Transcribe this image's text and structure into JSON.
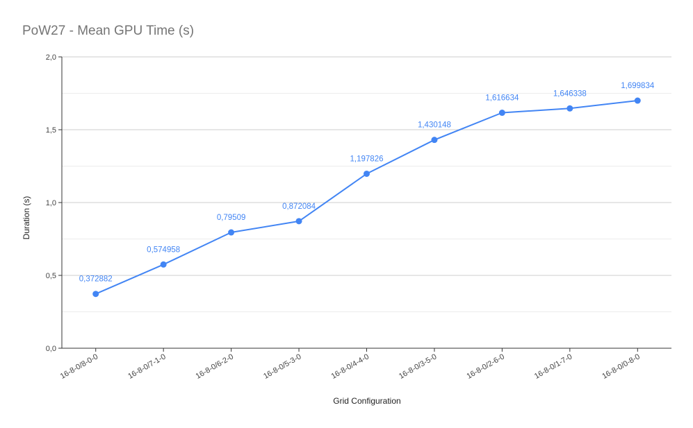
{
  "chart_data": {
    "type": "line",
    "title": "PoW27 - Mean GPU Time (s)",
    "xlabel": "Grid Configuration",
    "ylabel": "Duration (s)",
    "categories": [
      "16-8-0/8-0-0",
      "16-8-0/7-1-0",
      "16-8-0/6-2-0",
      "16-8-0/5-3-0",
      "16-8-0/4-4-0",
      "16-8-0/3-5-0",
      "16-8-0/2-6-0",
      "16-8-0/1-7-0",
      "16-8-0/0-8-0"
    ],
    "series": [
      {
        "values": [
          0.372882,
          0.574958,
          0.79509,
          0.872084,
          1.197826,
          1.430148,
          1.616634,
          1.646338,
          1.699834
        ],
        "labels": [
          "0,372882",
          "0,574958",
          "0,79509",
          "0,872084",
          "1,197826",
          "1,430148",
          "1,616634",
          "1,646338",
          "1,699834"
        ],
        "color": "#4285f4"
      }
    ],
    "ylim": [
      0,
      2.0
    ],
    "yticks": [
      0,
      0.5,
      1.0,
      1.5,
      2.0
    ],
    "ytick_labels": [
      "0,0",
      "0,5",
      "1,0",
      "1,5",
      "2,0"
    ],
    "minor_gridlines": true,
    "legend": "none"
  }
}
